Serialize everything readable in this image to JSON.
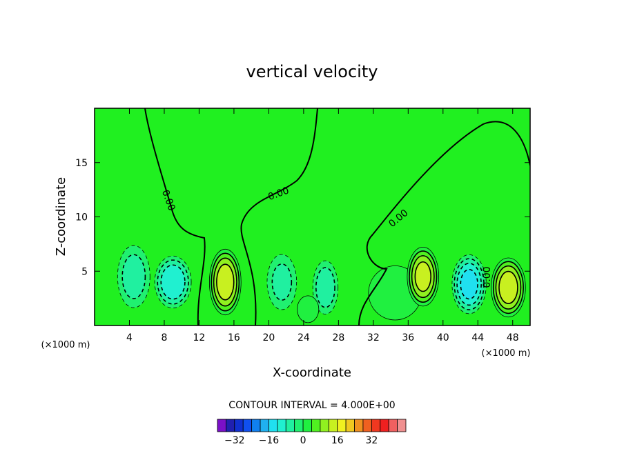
{
  "chart_data": {
    "type": "contour",
    "title": "vertical velocity",
    "xlabel": "X-coordinate",
    "ylabel": "Z-coordinate",
    "xunit_left": "(×1000 m)",
    "xunit_right": "(×1000 m)",
    "xlim": [
      0,
      50
    ],
    "ylim": [
      0,
      20
    ],
    "xticks": [
      4,
      8,
      12,
      16,
      20,
      24,
      28,
      32,
      36,
      40,
      44,
      48
    ],
    "yticks": [
      5,
      10,
      15
    ],
    "contour_interval_text": "CONTOUR INTERVAL = 4.000E+00",
    "contour_label": "0.00",
    "colorbar": {
      "levels": [
        -36,
        -32,
        -28,
        -24,
        -20,
        -16,
        -12,
        -8,
        -4,
        0,
        4,
        8,
        12,
        16,
        20,
        24,
        28,
        32,
        36
      ],
      "tick_labels": [
        "-32",
        "-16",
        "0",
        "16",
        "32"
      ],
      "tick_values": [
        -32,
        -16,
        0,
        16,
        32
      ],
      "colors": [
        "#7a10c8",
        "#2020b0",
        "#1030d0",
        "#1050f0",
        "#1080f0",
        "#20b0f0",
        "#20e0f0",
        "#20f0d0",
        "#20f0a0",
        "#20f070",
        "#20f040",
        "#50f020",
        "#90f020",
        "#c8f020",
        "#f0f020",
        "#f0c820",
        "#f09020",
        "#f06020",
        "#f03820",
        "#f02020",
        "#f06060",
        "#f09090"
      ]
    },
    "cells": [
      {
        "x": 4.5,
        "z": 4.5,
        "sx": 1.3,
        "sz": 2.0,
        "amp": -9
      },
      {
        "x": 9,
        "z": 4,
        "sx": 1.4,
        "sz": 1.6,
        "amp": -15
      },
      {
        "x": 15,
        "z": 4,
        "sx": 1.2,
        "sz": 2.0,
        "amp": 18
      },
      {
        "x": 21.5,
        "z": 4,
        "sx": 1.2,
        "sz": 1.8,
        "amp": -8
      },
      {
        "x": 26.5,
        "z": 3.5,
        "sx": 1.0,
        "sz": 1.7,
        "amp": -10
      },
      {
        "x": 34.5,
        "z": 3,
        "sx": 2.2,
        "sz": 1.8,
        "amp": 7
      },
      {
        "x": 37.7,
        "z": 4.5,
        "sx": 1.2,
        "sz": 1.8,
        "amp": 17
      },
      {
        "x": 43,
        "z": 3.8,
        "sx": 1.3,
        "sz": 1.8,
        "amp": -17
      },
      {
        "x": 47.5,
        "z": 3.5,
        "sx": 1.3,
        "sz": 1.8,
        "amp": 18
      },
      {
        "x": 24.5,
        "z": 1.5,
        "sx": 1.0,
        "sz": 1.0,
        "amp": 4
      }
    ]
  }
}
